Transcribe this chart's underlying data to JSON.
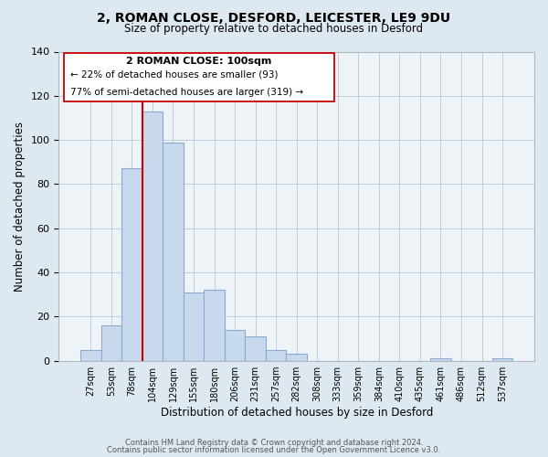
{
  "title": "2, ROMAN CLOSE, DESFORD, LEICESTER, LE9 9DU",
  "subtitle": "Size of property relative to detached houses in Desford",
  "xlabel": "Distribution of detached houses by size in Desford",
  "ylabel": "Number of detached properties",
  "bar_color": "#c8d8ed",
  "bar_edge_color": "#8aaacf",
  "background_color": "#dde8f0",
  "plot_bg_color": "#eef3f8",
  "bin_labels": [
    "27sqm",
    "53sqm",
    "78sqm",
    "104sqm",
    "129sqm",
    "155sqm",
    "180sqm",
    "206sqm",
    "231sqm",
    "257sqm",
    "282sqm",
    "308sqm",
    "333sqm",
    "359sqm",
    "384sqm",
    "410sqm",
    "435sqm",
    "461sqm",
    "486sqm",
    "512sqm",
    "537sqm"
  ],
  "bar_heights": [
    5,
    16,
    87,
    113,
    99,
    31,
    32,
    14,
    11,
    5,
    3,
    0,
    0,
    0,
    0,
    0,
    0,
    1,
    0,
    0,
    1
  ],
  "vline_color": "#cc0000",
  "ylim": [
    0,
    140
  ],
  "yticks": [
    0,
    20,
    40,
    60,
    80,
    100,
    120,
    140
  ],
  "annotation_title": "2 ROMAN CLOSE: 100sqm",
  "annotation_line1": "← 22% of detached houses are smaller (93)",
  "annotation_line2": "77% of semi-detached houses are larger (319) →",
  "footer_line1": "Contains HM Land Registry data © Crown copyright and database right 2024.",
  "footer_line2": "Contains public sector information licensed under the Open Government Licence v3.0.",
  "grid_color": "#c0ccd8"
}
